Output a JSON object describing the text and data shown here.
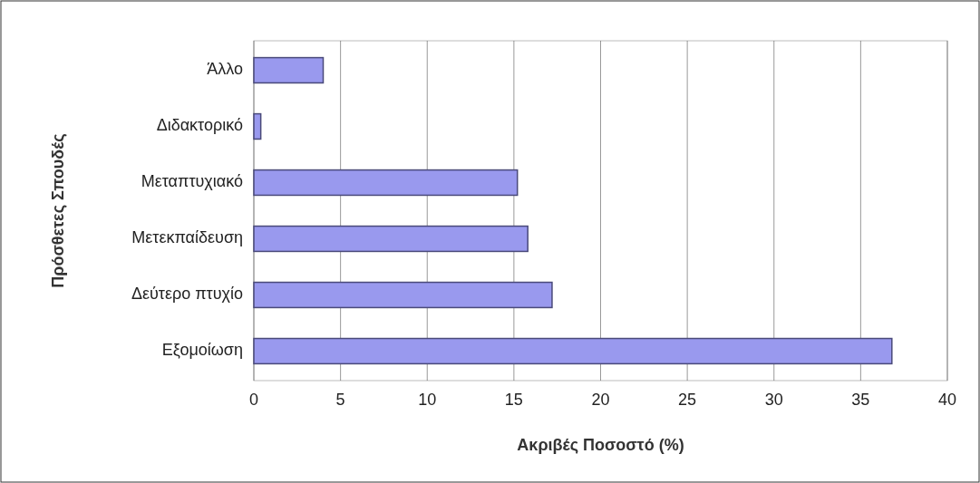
{
  "chart_data": {
    "type": "bar",
    "orientation": "horizontal",
    "xlabel": "Ακριβές Ποσοστό (%)",
    "ylabel": "Πρόσθετες Σπουδές",
    "categories": [
      "Άλλο",
      "Διδακτορικό",
      "Μεταπτυχιακό",
      "Μετεκπαίδευση",
      "Δεύτερο πτυχίο",
      "Εξομοίωση"
    ],
    "values": [
      4.0,
      0.4,
      15.2,
      15.8,
      17.2,
      36.8
    ],
    "color": "#9999ee",
    "xlim": [
      0,
      40
    ],
    "xticks": [
      0,
      5,
      10,
      15,
      20,
      25,
      30,
      35,
      40
    ],
    "grid": "x"
  }
}
